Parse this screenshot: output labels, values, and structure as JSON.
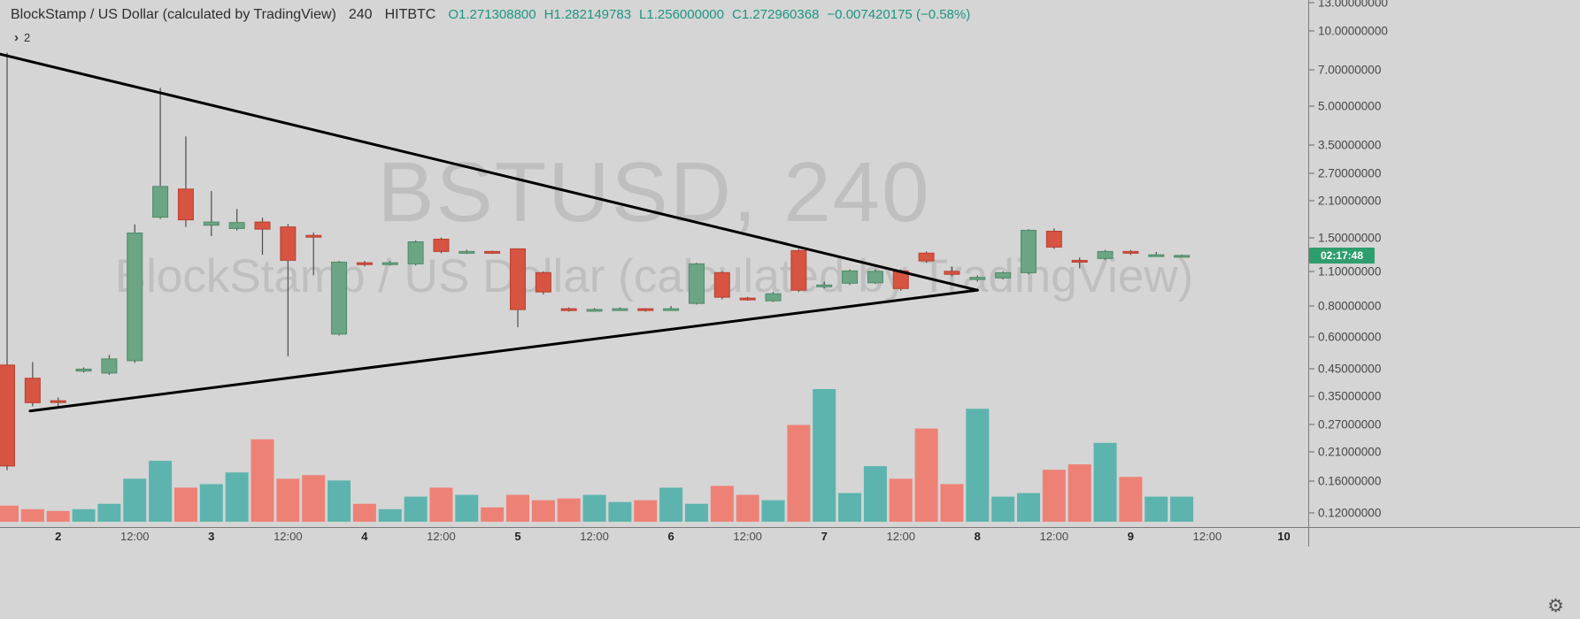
{
  "header": {
    "symbol_title": "BlockStamp / US Dollar (calculated by TradingView)",
    "interval": "240",
    "exchange": "HITBTC",
    "open": "O1.271308800",
    "high": "H1.282149783",
    "low": "L1.256000000",
    "close": "C1.272960368",
    "change": "−0.007420175 (−0.58%)"
  },
  "toolbar": {
    "collapse_chevron": "›",
    "indicator_count": "2"
  },
  "watermark": {
    "line1": "BSTUSD, 240",
    "line2": "BlockStamp / US Dollar (calculated by TradingView)"
  },
  "price_axis": {
    "countdown": "02:17:48",
    "labels": [
      "13.00000000",
      "10.00000000",
      "7.00000000",
      "5.00000000",
      "3.50000000",
      "2.70000000",
      "2.10000000",
      "1.50000000",
      "1.10000000",
      "0.80000000",
      "0.60000000",
      "0.45000000",
      "0.35000000",
      "0.27000000",
      "0.21000000",
      "0.16000000",
      "0.12000000"
    ]
  },
  "time_axis": {
    "ticks": [
      {
        "label": "2",
        "bar": 2,
        "major": true
      },
      {
        "label": "12:00",
        "bar": 5,
        "major": false
      },
      {
        "label": "3",
        "bar": 8,
        "major": true
      },
      {
        "label": "12:00",
        "bar": 11,
        "major": false
      },
      {
        "label": "4",
        "bar": 14,
        "major": true
      },
      {
        "label": "12:00",
        "bar": 17,
        "major": false
      },
      {
        "label": "5",
        "bar": 20,
        "major": true
      },
      {
        "label": "12:00",
        "bar": 23,
        "major": false
      },
      {
        "label": "6",
        "bar": 26,
        "major": true
      },
      {
        "label": "12:00",
        "bar": 29,
        "major": false
      },
      {
        "label": "7",
        "bar": 32,
        "major": true
      },
      {
        "label": "12:00",
        "bar": 35,
        "major": false
      },
      {
        "label": "8",
        "bar": 38,
        "major": true
      },
      {
        "label": "12:00",
        "bar": 41,
        "major": false
      },
      {
        "label": "9",
        "bar": 44,
        "major": true
      },
      {
        "label": "12:00",
        "bar": 47,
        "major": false
      },
      {
        "label": "10",
        "bar": 50,
        "major": true
      }
    ]
  },
  "icons": {
    "gear": "⚙"
  },
  "colors": {
    "background": "#d5d5d5",
    "candle_up": "#6ba583",
    "candle_up_border": "#4f8a68",
    "candle_down": "#d75442",
    "candle_down_border": "#b8402f",
    "wick": "#4d4d4d",
    "volume_up": "#53b1aa",
    "volume_down": "#f0796e",
    "trendline": "#000000",
    "countdown_bg": "#2f9e6e",
    "countdown_text": "#ffffff",
    "axis_line": "#7a7a7a"
  },
  "chart_data": {
    "type": "candlestick",
    "title": "BSTUSD, 240",
    "symbol": "BSTUSD",
    "interval_minutes": 240,
    "exchange": "HITBTC",
    "y_scale": "log",
    "ylim": [
      0.105,
      13.3
    ],
    "y_tick_values": [
      13,
      10,
      7,
      5,
      3.5,
      2.7,
      2.1,
      1.5,
      1.1,
      0.8,
      0.6,
      0.45,
      0.35,
      0.27,
      0.21,
      0.16,
      0.12
    ],
    "x_axis_days": [
      "2",
      "3",
      "4",
      "5",
      "6",
      "7",
      "8",
      "9",
      "10"
    ],
    "volume_unit": "relative",
    "candles_format": [
      "open",
      "high",
      "low",
      "close",
      "volume"
    ],
    "candles": [
      [
        0.465,
        8.2,
        0.177,
        0.184,
        18
      ],
      [
        0.412,
        0.478,
        0.318,
        0.329,
        14
      ],
      [
        0.335,
        0.345,
        0.315,
        0.33,
        12
      ],
      [
        0.44,
        0.455,
        0.434,
        0.448,
        14
      ],
      [
        0.432,
        0.51,
        0.425,
        0.492,
        20
      ],
      [
        0.484,
        1.695,
        0.475,
        1.564,
        48
      ],
      [
        1.808,
        5.93,
        1.78,
        2.399,
        68
      ],
      [
        2.342,
        3.8,
        1.654,
        1.765,
        38
      ],
      [
        1.68,
        2.3,
        1.52,
        1.73,
        42
      ],
      [
        1.63,
        1.95,
        1.6,
        1.722,
        55
      ],
      [
        1.73,
        1.8,
        1.28,
        1.62,
        92
      ],
      [
        1.654,
        1.7,
        0.504,
        1.217,
        48
      ],
      [
        1.53,
        1.57,
        1.06,
        1.52,
        52
      ],
      [
        0.618,
        1.21,
        0.61,
        1.197,
        46
      ],
      [
        1.19,
        1.21,
        1.15,
        1.17,
        20
      ],
      [
        1.17,
        1.21,
        1.16,
        1.19,
        14
      ],
      [
        1.178,
        1.46,
        1.16,
        1.442,
        28
      ],
      [
        1.478,
        1.5,
        1.3,
        1.32,
        38
      ],
      [
        1.31,
        1.34,
        1.29,
        1.32,
        30
      ],
      [
        1.32,
        1.33,
        1.29,
        1.31,
        16
      ],
      [
        1.352,
        1.36,
        0.659,
        0.774,
        30
      ],
      [
        1.087,
        1.1,
        0.89,
        0.91,
        24
      ],
      [
        0.78,
        0.79,
        0.76,
        0.77,
        26
      ],
      [
        0.77,
        0.785,
        0.765,
        0.775,
        30
      ],
      [
        0.775,
        0.79,
        0.77,
        0.78,
        22
      ],
      [
        0.78,
        0.785,
        0.76,
        0.77,
        24
      ],
      [
        0.775,
        0.8,
        0.77,
        0.78,
        38
      ],
      [
        0.819,
        1.19,
        0.81,
        1.178,
        20
      ],
      [
        1.087,
        1.1,
        0.85,
        0.867,
        40
      ],
      [
        0.86,
        0.87,
        0.84,
        0.85,
        30
      ],
      [
        0.839,
        0.91,
        0.83,
        0.895,
        24
      ],
      [
        1.33,
        1.35,
        0.91,
        0.925,
        108
      ],
      [
        0.955,
        1.0,
        0.94,
        0.97,
        148
      ],
      [
        0.986,
        1.12,
        0.97,
        1.104,
        32
      ],
      [
        0.99,
        1.12,
        0.98,
        1.1,
        62
      ],
      [
        1.104,
        1.12,
        0.92,
        0.939,
        48
      ],
      [
        1.3,
        1.32,
        1.19,
        1.21,
        104
      ],
      [
        1.1,
        1.15,
        1.05,
        1.07,
        42
      ],
      [
        1.02,
        1.06,
        1.0,
        1.04,
        126
      ],
      [
        1.035,
        1.1,
        1.02,
        1.086,
        28
      ],
      [
        1.086,
        1.62,
        1.07,
        1.603,
        32
      ],
      [
        1.59,
        1.63,
        1.35,
        1.374,
        58
      ],
      [
        1.216,
        1.25,
        1.13,
        1.21,
        64
      ],
      [
        1.237,
        1.34,
        1.22,
        1.32,
        88
      ],
      [
        1.32,
        1.34,
        1.28,
        1.3,
        50
      ],
      [
        1.275,
        1.315,
        1.27,
        1.280380543,
        28
      ],
      [
        1.2713088,
        1.282149783,
        1.256,
        1.272960368,
        28
      ]
    ],
    "trendlines": [
      {
        "from_bar": -0.3,
        "from_price": 8.1,
        "to_bar": 38.0,
        "to_price": 0.925
      },
      {
        "from_bar": 0.9,
        "from_price": 0.305,
        "to_bar": 38.0,
        "to_price": 0.925
      }
    ]
  }
}
